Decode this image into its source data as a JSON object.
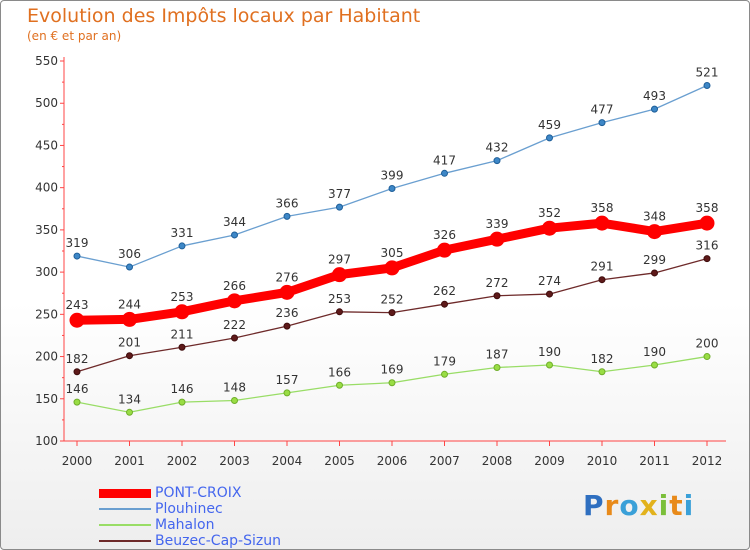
{
  "logo": {
    "text": "Proxiti",
    "letters": [
      {
        "ch": "P",
        "color": "#2f6fc0"
      },
      {
        "ch": "r",
        "color": "#e88a1a"
      },
      {
        "ch": "o",
        "color": "#3aa0d8"
      },
      {
        "ch": "x",
        "color": "#e2b21c"
      },
      {
        "ch": "i",
        "color": "#7bbf3a"
      },
      {
        "ch": "t",
        "color": "#e88a1a"
      },
      {
        "ch": "i",
        "color": "#3aa0d8"
      }
    ]
  },
  "chart_data": {
    "type": "line",
    "title": "Evolution des Impôts locaux par Habitant",
    "subtitle": "(en € et par an)",
    "x": [
      "2000",
      "2001",
      "2002",
      "2003",
      "2004",
      "2005",
      "2006",
      "2007",
      "2008",
      "2009",
      "2010",
      "2011",
      "2012"
    ],
    "ylim": [
      100,
      550
    ],
    "yticks": [
      100,
      150,
      200,
      250,
      300,
      350,
      400,
      450,
      500,
      550
    ],
    "grid": false,
    "legend_position": "bottom-left",
    "series": [
      {
        "name": "PONT-CROIX",
        "color": "#ff0000",
        "values": [
          243,
          244,
          253,
          266,
          276,
          297,
          305,
          326,
          339,
          352,
          358,
          348,
          358
        ]
      },
      {
        "name": "Plouhinec",
        "color": "#6a9fd0",
        "values": [
          319,
          306,
          331,
          344,
          366,
          377,
          399,
          417,
          432,
          459,
          477,
          493,
          521
        ]
      },
      {
        "name": "Mahalon",
        "color": "#99dd66",
        "values": [
          146,
          134,
          146,
          148,
          157,
          166,
          169,
          179,
          187,
          190,
          182,
          190,
          200
        ]
      },
      {
        "name": "Beuzec-Cap-Sizun",
        "color": "#6e2a2a",
        "values": [
          182,
          201,
          211,
          222,
          236,
          253,
          252,
          262,
          272,
          274,
          291,
          299,
          316
        ]
      }
    ]
  }
}
